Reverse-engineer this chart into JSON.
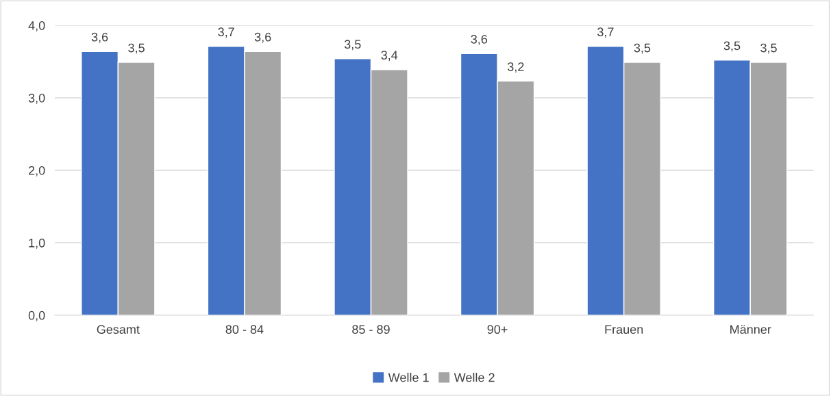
{
  "chart_data": {
    "type": "bar",
    "categories": [
      "Gesamt",
      "80 - 84",
      "85 - 89",
      "90+",
      "Frauen",
      "Männer"
    ],
    "series": [
      {
        "name": "Welle 1",
        "color": "#4472c4",
        "values": [
          3.64,
          3.71,
          3.54,
          3.61,
          3.71,
          3.52
        ],
        "value_labels": [
          "3,6",
          "3,7",
          "3,5",
          "3,6",
          "3,7",
          "3,5"
        ]
      },
      {
        "name": "Welle 2",
        "color": "#a5a5a5",
        "values": [
          3.49,
          3.64,
          3.39,
          3.23,
          3.49,
          3.49
        ],
        "value_labels": [
          "3,5",
          "3,6",
          "3,4",
          "3,2",
          "3,5",
          "3,5"
        ]
      }
    ],
    "ylim": [
      0,
      4
    ],
    "yticks": [
      {
        "value": 0,
        "label": "0,0"
      },
      {
        "value": 1,
        "label": "1,0"
      },
      {
        "value": 2,
        "label": "2,0"
      },
      {
        "value": 3,
        "label": "3,0"
      },
      {
        "value": 4,
        "label": "4,0"
      }
    ],
    "grid": "y",
    "legend": "bottom"
  }
}
